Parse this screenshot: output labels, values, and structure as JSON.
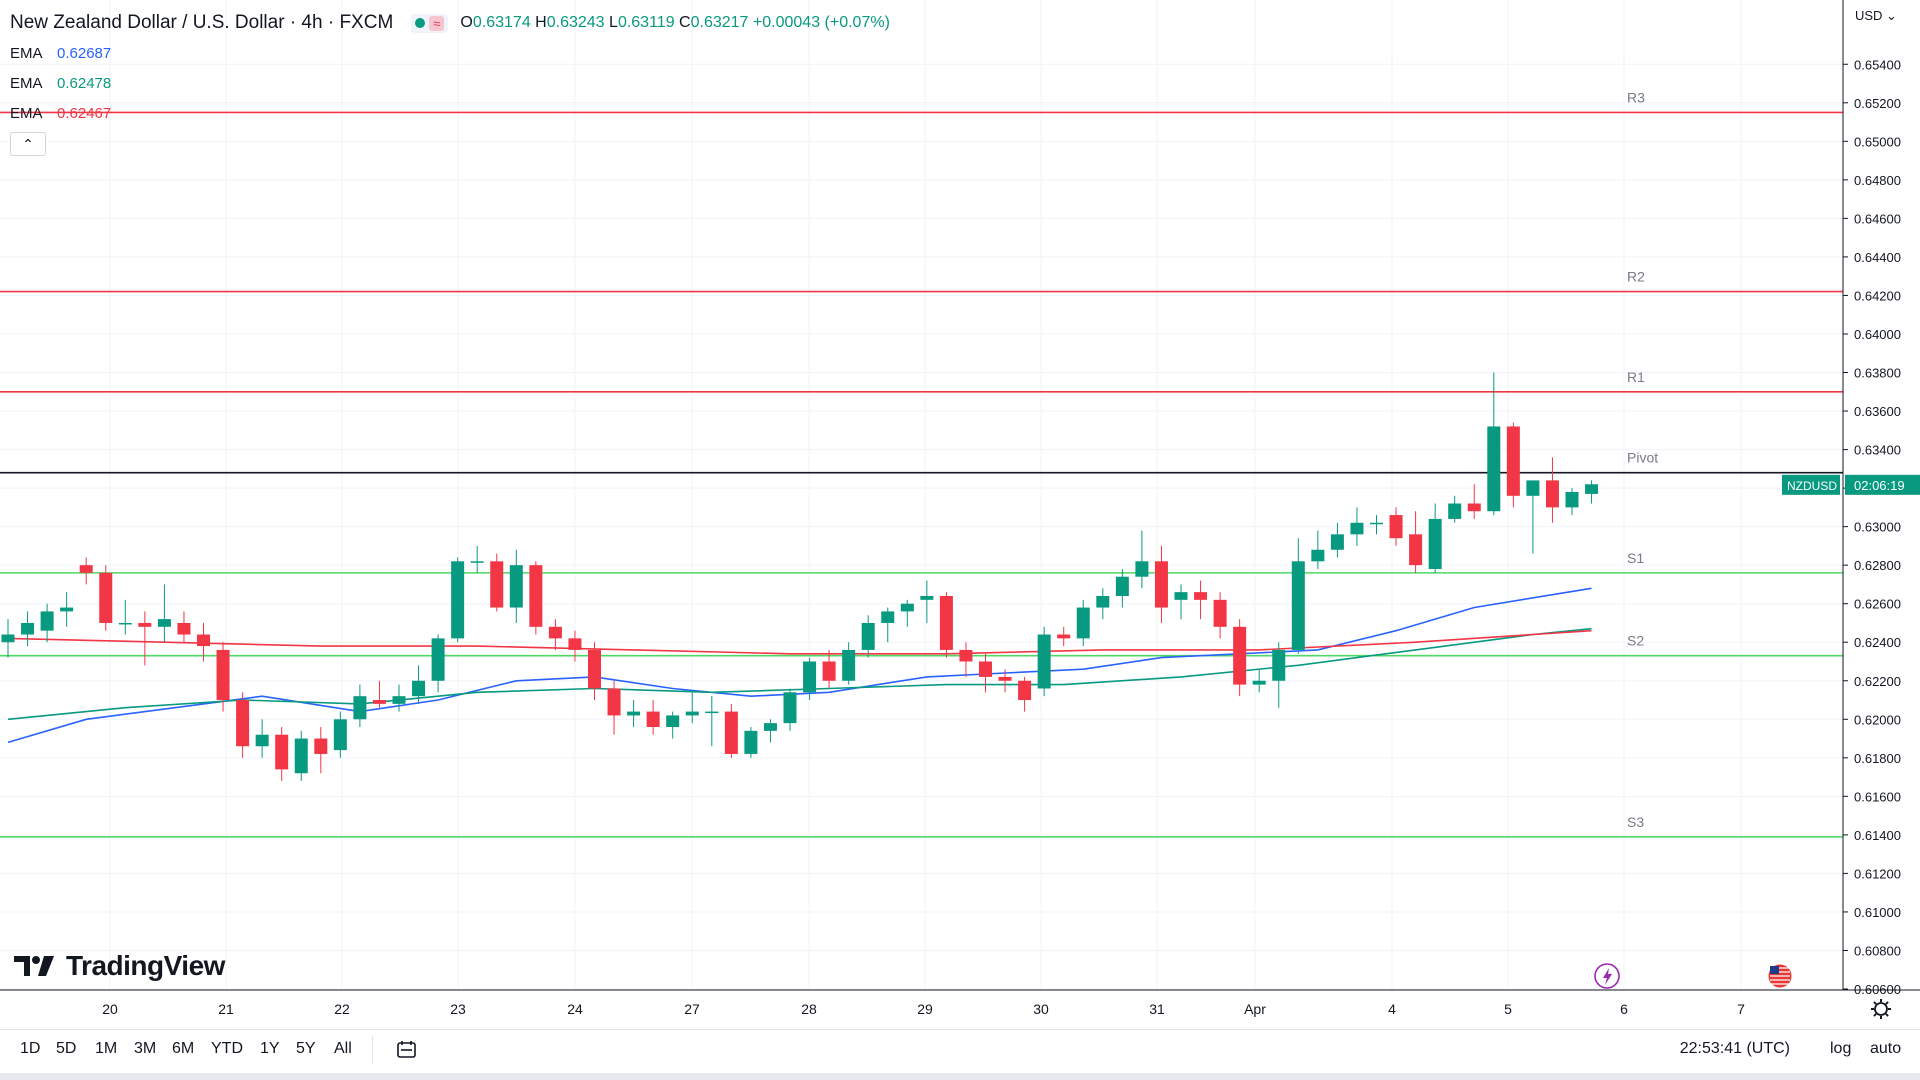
{
  "header": {
    "title": "New Zealand Dollar / U.S. Dollar · 4h · FXCM",
    "open_label": "O",
    "open": "0.63174",
    "high_label": "H",
    "high": "0.63243",
    "low_label": "L",
    "low": "0.63119",
    "close_label": "C",
    "close": "0.63217",
    "change": "+0.00043 (+0.07%)"
  },
  "emas": [
    {
      "label": "EMA",
      "value": "0.62687",
      "color": "#2962ff"
    },
    {
      "label": "EMA",
      "value": "0.62478",
      "color": "#089981"
    },
    {
      "label": "EMA",
      "value": "0.62467",
      "color": "#f23645"
    }
  ],
  "collapse_icon": "chevron-up-icon",
  "axis": {
    "currency": "USD",
    "symbol_tag": "NZDUSD",
    "countdown": "02:06:19"
  },
  "logo_text": "TradingView",
  "timeframes": [
    "1D",
    "5D",
    "1M",
    "3M",
    "6M",
    "YTD",
    "1Y",
    "5Y",
    "All"
  ],
  "clock": "22:53:41 (UTC)",
  "scale_options": {
    "log": "log",
    "auto": "auto"
  },
  "colors": {
    "up": "#089981",
    "down": "#f23645",
    "resistance": "#f23645",
    "support": "#4cd964",
    "pivot": "#131722"
  },
  "chart_data": {
    "type": "candlestick",
    "title": "New Zealand Dollar / U.S. Dollar · 4h · FXCM",
    "ylim": [
      0.606,
      0.655
    ],
    "y_ticks": [
      "0.65400",
      "0.65200",
      "0.65000",
      "0.64800",
      "0.64600",
      "0.64400",
      "0.64200",
      "0.64000",
      "0.63800",
      "0.63600",
      "0.63400",
      "0.63200",
      "0.63000",
      "0.62800",
      "0.62600",
      "0.62400",
      "0.62200",
      "0.62000",
      "0.61800",
      "0.61600",
      "0.61400",
      "0.61200",
      "0.61000",
      "0.60800",
      "0.60600"
    ],
    "x_ticks": [
      "20",
      "21",
      "22",
      "23",
      "24",
      "27",
      "28",
      "29",
      "30",
      "31",
      "Apr",
      "4",
      "5",
      "6",
      "7"
    ],
    "levels": [
      {
        "name": "R3",
        "value": 0.6515,
        "kind": "resistance"
      },
      {
        "name": "R2",
        "value": 0.6422,
        "kind": "resistance"
      },
      {
        "name": "R1",
        "value": 0.637,
        "kind": "resistance"
      },
      {
        "name": "Pivot",
        "value": 0.6328,
        "kind": "pivot"
      },
      {
        "name": "S1",
        "value": 0.6276,
        "kind": "support"
      },
      {
        "name": "S2",
        "value": 0.6233,
        "kind": "support"
      },
      {
        "name": "S3",
        "value": 0.6139,
        "kind": "support"
      }
    ],
    "candles": [
      [
        0.624,
        0.6252,
        0.6232,
        0.6244
      ],
      [
        0.6244,
        0.6256,
        0.6238,
        0.625
      ],
      [
        0.6246,
        0.626,
        0.624,
        0.6256
      ],
      [
        0.6256,
        0.6266,
        0.6248,
        0.6258
      ],
      [
        0.628,
        0.6284,
        0.627,
        0.6276
      ],
      [
        0.6276,
        0.628,
        0.6246,
        0.625
      ],
      [
        0.625,
        0.6262,
        0.6244,
        0.625
      ],
      [
        0.625,
        0.6256,
        0.6228,
        0.6248
      ],
      [
        0.6248,
        0.627,
        0.624,
        0.6252
      ],
      [
        0.625,
        0.6256,
        0.624,
        0.6244
      ],
      [
        0.6244,
        0.625,
        0.623,
        0.6238
      ],
      [
        0.6236,
        0.624,
        0.6204,
        0.621
      ],
      [
        0.621,
        0.6214,
        0.618,
        0.6186
      ],
      [
        0.6186,
        0.62,
        0.618,
        0.6192
      ],
      [
        0.6192,
        0.6196,
        0.6168,
        0.6174
      ],
      [
        0.6172,
        0.6194,
        0.6168,
        0.619
      ],
      [
        0.619,
        0.6196,
        0.6172,
        0.6182
      ],
      [
        0.6184,
        0.6204,
        0.618,
        0.62
      ],
      [
        0.62,
        0.6218,
        0.6196,
        0.6212
      ],
      [
        0.621,
        0.622,
        0.6206,
        0.6208
      ],
      [
        0.6208,
        0.6218,
        0.6204,
        0.6212
      ],
      [
        0.6212,
        0.6228,
        0.6208,
        0.622
      ],
      [
        0.622,
        0.6244,
        0.6214,
        0.6242
      ],
      [
        0.6242,
        0.6284,
        0.624,
        0.6282
      ],
      [
        0.6282,
        0.629,
        0.6276,
        0.6282
      ],
      [
        0.6282,
        0.6286,
        0.6256,
        0.6258
      ],
      [
        0.6258,
        0.6288,
        0.625,
        0.628
      ],
      [
        0.628,
        0.6282,
        0.6244,
        0.6248
      ],
      [
        0.6248,
        0.6252,
        0.6236,
        0.6242
      ],
      [
        0.6242,
        0.6246,
        0.623,
        0.6236
      ],
      [
        0.6236,
        0.624,
        0.621,
        0.6216
      ],
      [
        0.6216,
        0.622,
        0.6192,
        0.6202
      ],
      [
        0.6202,
        0.621,
        0.6196,
        0.6204
      ],
      [
        0.6204,
        0.621,
        0.6192,
        0.6196
      ],
      [
        0.6196,
        0.6204,
        0.619,
        0.6202
      ],
      [
        0.6202,
        0.6214,
        0.6198,
        0.6204
      ],
      [
        0.6204,
        0.6212,
        0.6186,
        0.6204
      ],
      [
        0.6204,
        0.6208,
        0.618,
        0.6182
      ],
      [
        0.6182,
        0.6196,
        0.618,
        0.6194
      ],
      [
        0.6194,
        0.62,
        0.6188,
        0.6198
      ],
      [
        0.6198,
        0.6216,
        0.6194,
        0.6214
      ],
      [
        0.6214,
        0.6232,
        0.621,
        0.623
      ],
      [
        0.623,
        0.6236,
        0.6216,
        0.622
      ],
      [
        0.622,
        0.624,
        0.6218,
        0.6236
      ],
      [
        0.6236,
        0.6254,
        0.6232,
        0.625
      ],
      [
        0.625,
        0.6258,
        0.624,
        0.6256
      ],
      [
        0.6256,
        0.6262,
        0.6248,
        0.626
      ],
      [
        0.6262,
        0.6272,
        0.625,
        0.6264
      ],
      [
        0.6264,
        0.6266,
        0.6232,
        0.6236
      ],
      [
        0.6236,
        0.624,
        0.6222,
        0.623
      ],
      [
        0.623,
        0.6234,
        0.6214,
        0.6222
      ],
      [
        0.6222,
        0.6226,
        0.6214,
        0.622
      ],
      [
        0.622,
        0.6222,
        0.6204,
        0.621
      ],
      [
        0.6216,
        0.6248,
        0.6212,
        0.6244
      ],
      [
        0.6244,
        0.6248,
        0.6238,
        0.6242
      ],
      [
        0.6242,
        0.6262,
        0.6238,
        0.6258
      ],
      [
        0.6258,
        0.6268,
        0.6252,
        0.6264
      ],
      [
        0.6264,
        0.6278,
        0.6258,
        0.6274
      ],
      [
        0.6274,
        0.6298,
        0.6268,
        0.6282
      ],
      [
        0.6282,
        0.629,
        0.625,
        0.6258
      ],
      [
        0.6262,
        0.627,
        0.6252,
        0.6266
      ],
      [
        0.6266,
        0.6272,
        0.6252,
        0.6262
      ],
      [
        0.6262,
        0.6266,
        0.6242,
        0.6248
      ],
      [
        0.6248,
        0.6252,
        0.6212,
        0.6218
      ],
      [
        0.6218,
        0.6226,
        0.6214,
        0.622
      ],
      [
        0.622,
        0.624,
        0.6206,
        0.6236
      ],
      [
        0.6236,
        0.6294,
        0.6234,
        0.6282
      ],
      [
        0.6282,
        0.6298,
        0.6278,
        0.6288
      ],
      [
        0.6288,
        0.6302,
        0.6284,
        0.6296
      ],
      [
        0.6296,
        0.631,
        0.629,
        0.6302
      ],
      [
        0.6302,
        0.6306,
        0.6296,
        0.6302
      ],
      [
        0.6306,
        0.631,
        0.629,
        0.6294
      ],
      [
        0.6296,
        0.6308,
        0.6276,
        0.628
      ],
      [
        0.6278,
        0.6312,
        0.6276,
        0.6304
      ],
      [
        0.6304,
        0.6316,
        0.6302,
        0.6312
      ],
      [
        0.6312,
        0.6322,
        0.6304,
        0.6308
      ],
      [
        0.6308,
        0.638,
        0.6306,
        0.6352
      ],
      [
        0.6352,
        0.6354,
        0.631,
        0.6316
      ],
      [
        0.6316,
        0.6324,
        0.6286,
        0.6324
      ],
      [
        0.6324,
        0.6336,
        0.6302,
        0.631
      ],
      [
        0.631,
        0.632,
        0.6306,
        0.6318
      ],
      [
        0.6317,
        0.6324,
        0.6312,
        0.6322
      ]
    ],
    "ema_series": [
      {
        "color": "#2962ff",
        "points": [
          [
            0,
            0.6188
          ],
          [
            4,
            0.62
          ],
          [
            10,
            0.6208
          ],
          [
            13,
            0.6212
          ],
          [
            18,
            0.6204
          ],
          [
            22,
            0.621
          ],
          [
            26,
            0.622
          ],
          [
            30,
            0.6222
          ],
          [
            34,
            0.6216
          ],
          [
            38,
            0.6212
          ],
          [
            42,
            0.6214
          ],
          [
            47,
            0.6222
          ],
          [
            51,
            0.6224
          ],
          [
            55,
            0.6226
          ],
          [
            59,
            0.6232
          ],
          [
            63,
            0.6234
          ],
          [
            67,
            0.6236
          ],
          [
            71,
            0.6246
          ],
          [
            75,
            0.6258
          ],
          [
            81,
            0.6268
          ]
        ]
      },
      {
        "color": "#089981",
        "points": [
          [
            0,
            0.62
          ],
          [
            6,
            0.6206
          ],
          [
            12,
            0.621
          ],
          [
            18,
            0.6208
          ],
          [
            24,
            0.6214
          ],
          [
            30,
            0.6216
          ],
          [
            36,
            0.6214
          ],
          [
            42,
            0.6216
          ],
          [
            48,
            0.6218
          ],
          [
            54,
            0.6218
          ],
          [
            60,
            0.6222
          ],
          [
            66,
            0.6228
          ],
          [
            72,
            0.6236
          ],
          [
            78,
            0.6244
          ],
          [
            81,
            0.6247
          ]
        ]
      },
      {
        "color": "#f23645",
        "points": [
          [
            0,
            0.6242
          ],
          [
            8,
            0.624
          ],
          [
            16,
            0.6238
          ],
          [
            24,
            0.6238
          ],
          [
            32,
            0.6236
          ],
          [
            40,
            0.6234
          ],
          [
            48,
            0.6234
          ],
          [
            56,
            0.6236
          ],
          [
            64,
            0.6236
          ],
          [
            72,
            0.624
          ],
          [
            78,
            0.6244
          ],
          [
            81,
            0.6246
          ]
        ]
      }
    ]
  }
}
